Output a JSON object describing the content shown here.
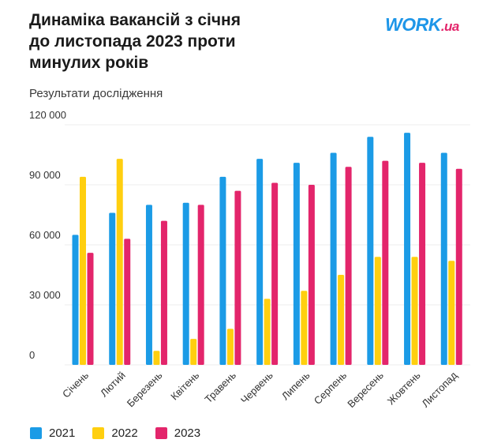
{
  "header": {
    "title_lines": [
      "Динаміка вакансій з січня",
      "до листопада 2023 проти",
      "минулих років"
    ],
    "subtitle": "Результати дослідження",
    "logo": {
      "main": "WORK",
      "suffix": ".ua"
    }
  },
  "colors": {
    "2021": "#1b9be6",
    "2022": "#ffcf0f",
    "2023": "#e3256b",
    "grid": "#ececec",
    "axis_text": "#333333"
  },
  "chart_data": {
    "type": "bar",
    "title": "Динаміка вакансій з січня до листопада 2023 проти минулих років",
    "xlabel": "",
    "ylabel": "",
    "ylim": [
      0,
      120000
    ],
    "yticks": [
      0,
      30000,
      60000,
      90000,
      120000
    ],
    "ytick_labels": [
      "0",
      "30 000",
      "60 000",
      "90 000",
      "120 000"
    ],
    "grid": true,
    "legend_position": "bottom-left",
    "categories": [
      "Січень",
      "Лютий",
      "Березень",
      "Квітень",
      "Травень",
      "Червень",
      "Липень",
      "Серпень",
      "Вересень",
      "Жовтень",
      "Листопад"
    ],
    "series": [
      {
        "name": "2021",
        "values": [
          65000,
          76000,
          80000,
          81000,
          94000,
          103000,
          101000,
          106000,
          114000,
          116000,
          106000
        ]
      },
      {
        "name": "2022",
        "values": [
          94000,
          103000,
          7000,
          13000,
          18000,
          33000,
          37000,
          45000,
          54000,
          54000,
          52000
        ]
      },
      {
        "name": "2023",
        "values": [
          56000,
          63000,
          72000,
          80000,
          87000,
          91000,
          90000,
          99000,
          102000,
          101000,
          98000
        ]
      }
    ]
  }
}
